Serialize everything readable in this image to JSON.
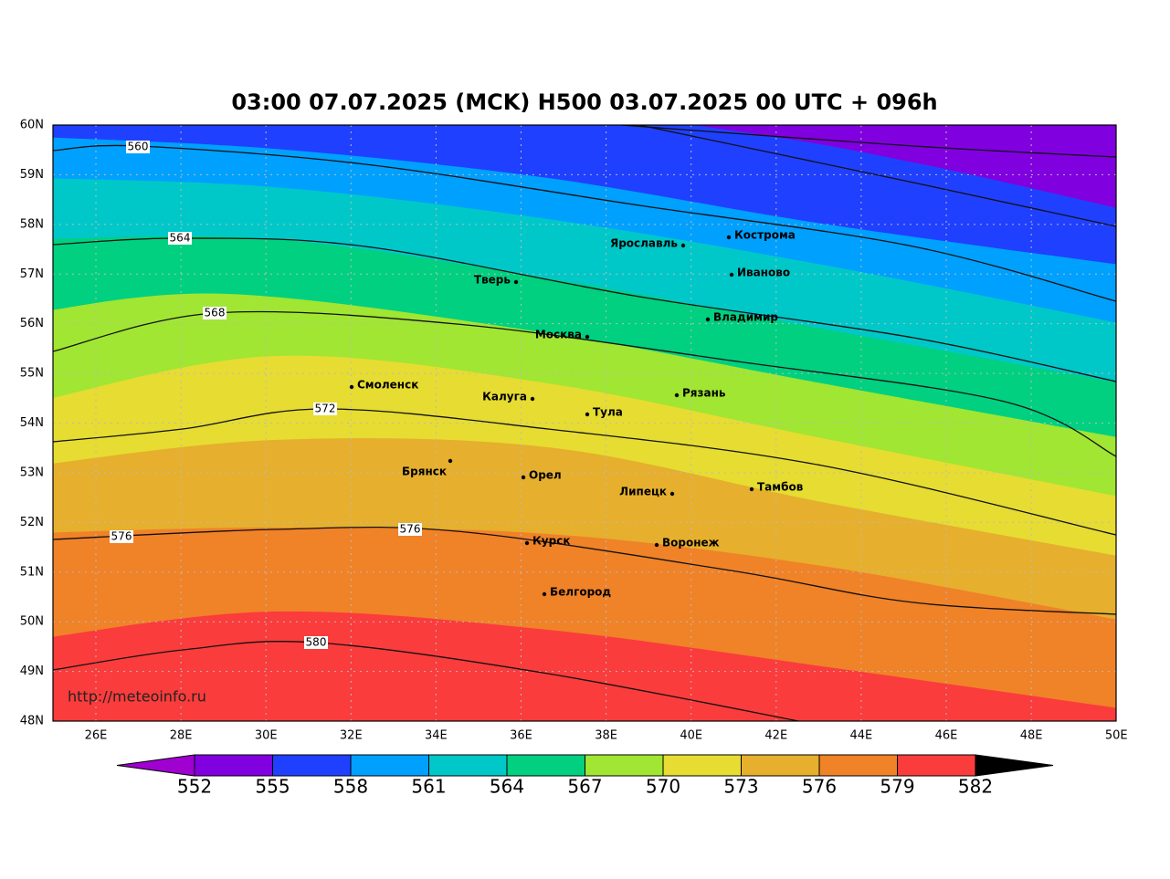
{
  "title": "03:00 07.07.2025 (MCK) H500  03.07.2025 00 UTC + 096h",
  "lat_labels": [
    "60N",
    "59N",
    "58N",
    "57N",
    "56N",
    "55N",
    "54N",
    "53N",
    "52N",
    "51N",
    "50N",
    "49N",
    "48N"
  ],
  "lon_labels": [
    "26E",
    "28E",
    "30E",
    "32E",
    "34E",
    "36E",
    "38E",
    "40E",
    "42E",
    "44E",
    "46E",
    "48E",
    "50E"
  ],
  "cities": [
    "Кострома",
    "Ярославль",
    "Иваново",
    "Тверь",
    "Владимир",
    "Москва",
    "Смоленск",
    "Рязань",
    "Калуга",
    "Тула",
    "Брянск",
    "Орел",
    "Липецк",
    "Тамбов",
    "Курск",
    "Воронеж",
    "Белгород"
  ],
  "contour_labels": [
    "560",
    "564",
    "568",
    "572",
    "576",
    "576",
    "580"
  ],
  "watermark": "http://meteoinfo.ru",
  "colorbar": {
    "ticks": [
      552,
      555,
      558,
      561,
      564,
      567,
      570,
      573,
      576,
      579,
      582
    ],
    "colors": [
      "#a000d0",
      "#8000e0",
      "#2040ff",
      "#00a0ff",
      "#00c8c8",
      "#00d080",
      "#a0e632",
      "#e6dc32",
      "#e6af2d",
      "#f08228",
      "#fa3c3c",
      "#f00080"
    ]
  }
}
